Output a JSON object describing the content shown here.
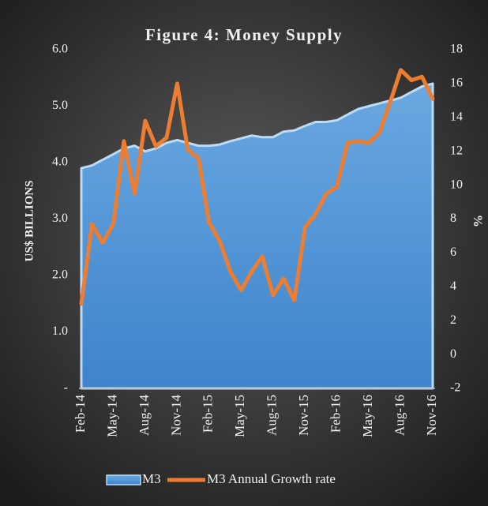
{
  "chart_data": {
    "type": "area-line",
    "title": "Figure 4: Money Supply",
    "y_label": "US$ BILLIONS",
    "y2_label": "%",
    "categories": [
      "Feb-14",
      null,
      null,
      "May-14",
      null,
      null,
      "Aug-14",
      null,
      null,
      "Nov-14",
      null,
      null,
      "Feb-15",
      null,
      null,
      "May-15",
      null,
      null,
      "Aug-15",
      null,
      null,
      "Nov-15",
      null,
      null,
      "Feb-16",
      null,
      null,
      "May-16",
      null,
      null,
      "Aug-16",
      null,
      null,
      "Nov-16"
    ],
    "series": [
      {
        "name": "M3",
        "color": "#5b9bd5",
        "axis": "y",
        "values": [
          3.9,
          3.95,
          4.05,
          4.15,
          4.25,
          4.3,
          4.2,
          4.25,
          4.35,
          4.4,
          4.35,
          4.3,
          4.3,
          4.32,
          4.38,
          4.43,
          4.48,
          4.45,
          4.45,
          4.55,
          4.57,
          4.65,
          4.72,
          4.72,
          4.75,
          4.85,
          4.95,
          5.0,
          5.05,
          5.1,
          5.15,
          5.25,
          5.35,
          5.4
        ]
      },
      {
        "name": "M3 Annual Growth rate",
        "color": "#ed7d31",
        "axis": "y2",
        "values": [
          3.0,
          7.7,
          6.6,
          7.7,
          12.6,
          9.5,
          13.8,
          12.3,
          12.8,
          16.0,
          12.1,
          11.6,
          7.8,
          6.7,
          4.9,
          3.8,
          4.9,
          5.8,
          3.5,
          4.5,
          3.2,
          7.5,
          8.3,
          9.5,
          9.9,
          12.5,
          12.6,
          12.5,
          13.1,
          14.9,
          16.8,
          16.2,
          16.4,
          15.1
        ]
      }
    ],
    "ylim": [
      0,
      6
    ],
    "yticks": [
      {
        "value": 0,
        "label": "-"
      },
      {
        "value": 1,
        "label": "1.0"
      },
      {
        "value": 2,
        "label": "2.0"
      },
      {
        "value": 3,
        "label": "3.0"
      },
      {
        "value": 4,
        "label": "4.0"
      },
      {
        "value": 5,
        "label": "5.0"
      },
      {
        "value": 6,
        "label": "6.0"
      }
    ],
    "y2lim": [
      -2,
      18
    ],
    "y2ticks": [
      -2,
      0,
      2,
      4,
      6,
      8,
      10,
      12,
      14,
      16,
      18
    ],
    "grid": false,
    "legend": "bottom"
  }
}
